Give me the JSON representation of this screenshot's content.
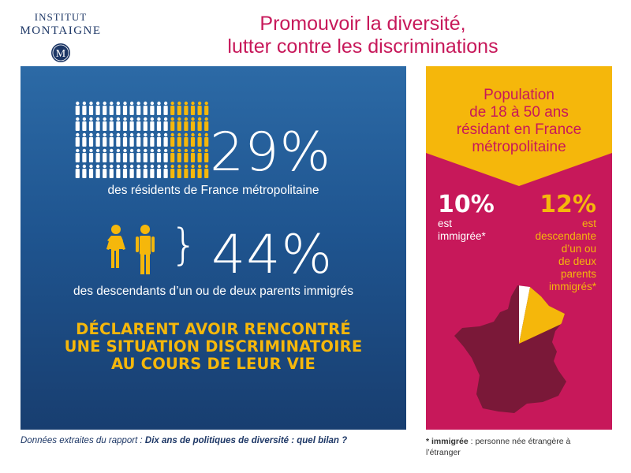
{
  "logo": {
    "line1": "INSTITUT",
    "line2": "MONTAIGNE",
    "mark_letter": "M"
  },
  "header": {
    "title_line1": "Promouvoir la diversité,",
    "title_line2": "lutter contre les discriminations"
  },
  "left_panel": {
    "stat1_pct": "29%",
    "stat1_desc": "des résidents de France métropolitaine",
    "people_grid_total": 100,
    "people_grid_highlighted": 29,
    "stat2_brace": "}",
    "stat2_pct": "44%",
    "stat2_desc": "des descendants d’un ou de deux parents immigrés",
    "declaration_line1": "DÉCLARENT AVOIR RENCONTRÉ",
    "declaration_line2": "UNE SITUATION DISCRIMINATOIRE",
    "declaration_line3": "AU COURS DE LEUR VIE"
  },
  "right_panel": {
    "population_line1": "Population",
    "population_line2": "de 18 à 50 ans",
    "population_line3": "résidant en France",
    "population_line4": "métropolitaine",
    "immigrant_pct": "10%",
    "immigrant_line1": "est",
    "immigrant_line2": "immigrée*",
    "descendant_pct": "12%",
    "descendant_line1": "est",
    "descendant_line2": "descendante",
    "descendant_line3": "d’un ou",
    "descendant_line4": "de deux",
    "descendant_line5": "parents",
    "descendant_line6": "immigrés*"
  },
  "footer": {
    "source_prefix": "Données extraites du rapport : ",
    "source_title": "Dix ans de politiques de diversité : quel bilan ?",
    "note_term": "* immigrée",
    "note_definition": " : personne née étrangère à l’étranger"
  },
  "colors": {
    "navy": "#1d3766",
    "blue_top": "#2c6aa6",
    "blue_bottom": "#183e70",
    "magenta": "#c7185a",
    "yellow": "#f5b70b",
    "white": "#ffffff",
    "dark_map": "#7a1838",
    "light_map": "#ffffff"
  }
}
